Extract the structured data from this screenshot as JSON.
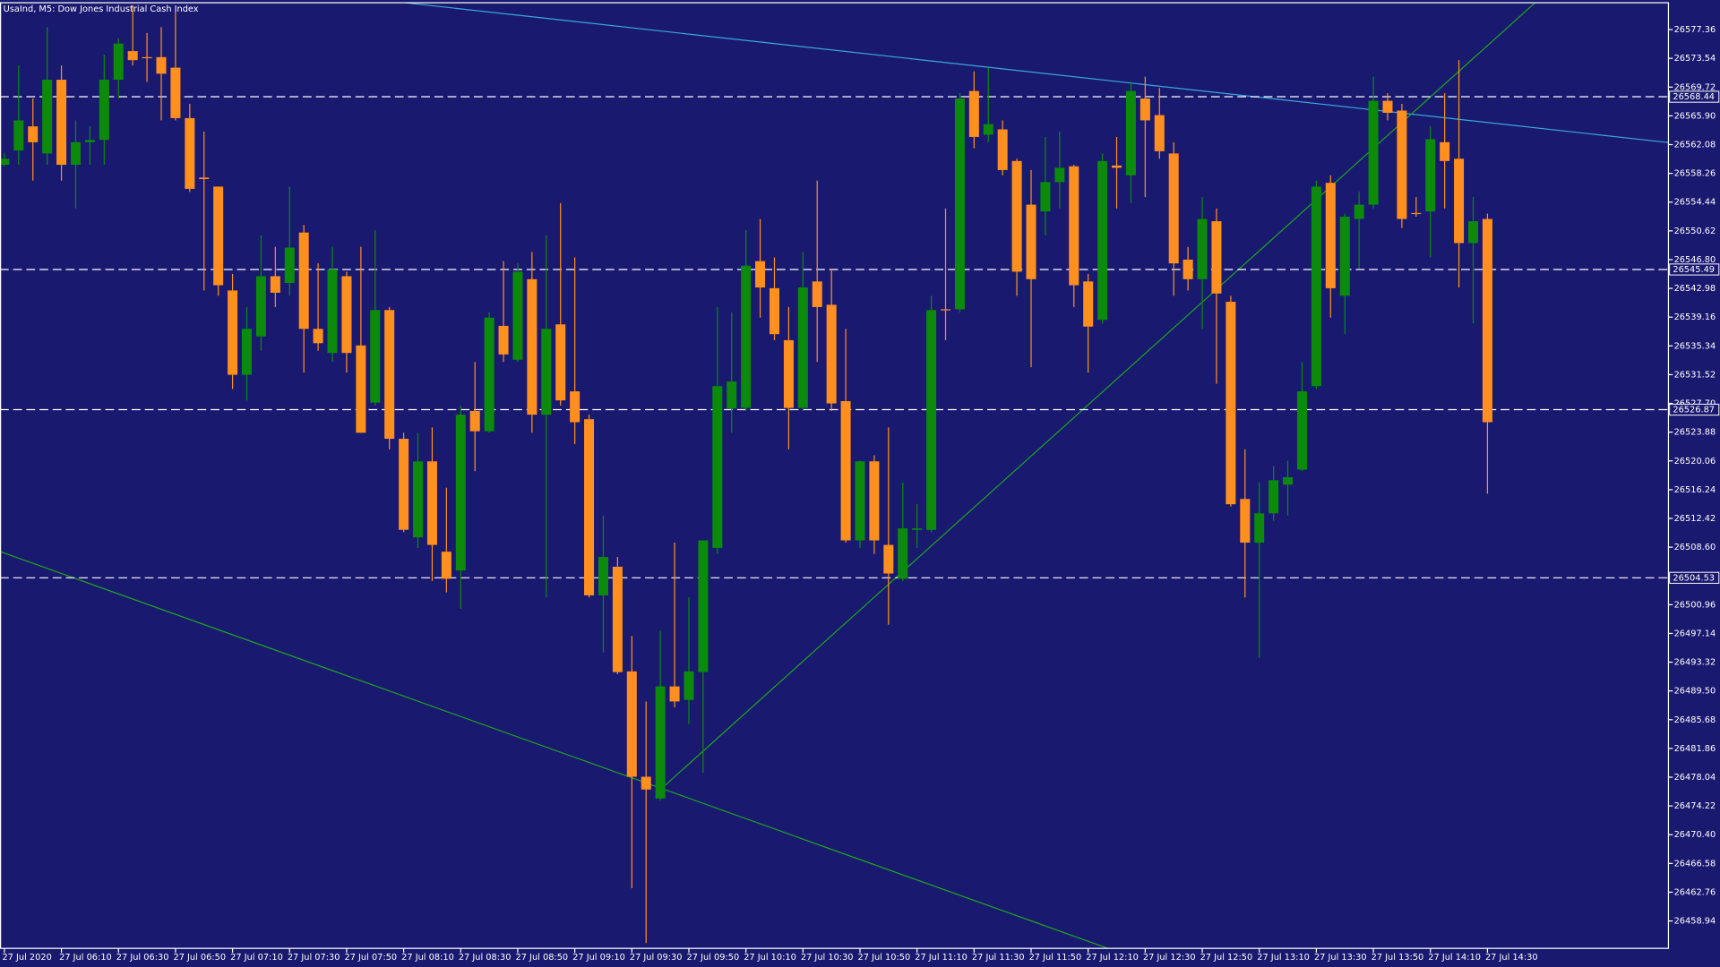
{
  "chart_data": {
    "type": "candlestick",
    "title": "UsaInd, M5:  Dow Jones Industrial Cash Index",
    "background": "#191970",
    "up_color": "#0b8a0b",
    "down_color": "#ff8f1f",
    "grid": false,
    "ylim": [
      26455.3,
      26581.0
    ],
    "yticks": [
      26577.36,
      26573.54,
      26569.72,
      {
        "value": 26565.9,
        "label": "26565.90"
      },
      26562.08,
      26558.26,
      26554.44,
      26550.62,
      {
        "value": 26546.8,
        "label": "26546.80"
      },
      26542.98,
      26539.16,
      26535.34,
      26531.52,
      {
        "value": 26527.7,
        "label": "26527.70"
      },
      26523.88,
      26520.06,
      26516.24,
      26512.42,
      {
        "value": 26508.6,
        "label": "26508.60"
      },
      26504.78,
      26500.96,
      26497.14,
      26493.32,
      {
        "value": 26489.5,
        "label": "26489.50"
      },
      26485.68,
      26481.86,
      26478.04,
      26474.22,
      {
        "value": 26470.4,
        "label": "26470.40"
      },
      26466.58,
      26462.76,
      26458.94
    ],
    "levels": [
      26568.44,
      26545.49,
      26526.87,
      26504.53
    ],
    "categories": [
      "27 Jul 2020",
      null,
      null,
      null,
      "27 Jul 06:10",
      null,
      null,
      null,
      "27 Jul 06:30",
      null,
      null,
      null,
      "27 Jul 06:50",
      null,
      null,
      null,
      "27 Jul 07:10",
      null,
      null,
      null,
      "27 Jul 07:30",
      null,
      null,
      null,
      "27 Jul 07:50",
      null,
      null,
      null,
      "27 Jul 08:10",
      null,
      null,
      null,
      "27 Jul 08:30",
      null,
      null,
      null,
      "27 Jul 08:50",
      null,
      null,
      null,
      "27 Jul 09:10",
      null,
      null,
      null,
      "27 Jul 09:30",
      null,
      null,
      null,
      "27 Jul 09:50",
      null,
      null,
      null,
      "27 Jul 10:10",
      null,
      null,
      null,
      "27 Jul 10:30",
      null,
      null,
      null,
      "27 Jul 10:50",
      null,
      null,
      null,
      "27 Jul 11:10",
      null,
      null,
      null,
      "27 Jul 11:30",
      null,
      null,
      null,
      "27 Jul 11:50",
      null,
      null,
      null,
      "27 Jul 12:10",
      null,
      null,
      null,
      "27 Jul 12:30",
      null,
      null,
      null,
      "27 Jul 12:50",
      null,
      null,
      null,
      "27 Jul 13:10",
      null,
      null,
      null,
      "27 Jul 13:30",
      null,
      null,
      null,
      "27 Jul 13:50",
      null,
      null,
      null,
      "27 Jul 14:10",
      null,
      null,
      null,
      "27 Jul 14:30"
    ],
    "open": [
      26559.4,
      26561.3,
      26564.5,
      26560.9,
      26570.7,
      26559.4,
      26562.4,
      26562.7,
      26570.7,
      26574.5,
      26573.7,
      26573.7,
      26572.3,
      26565.6,
      26557.7,
      26556.5,
      26542.7,
      26531.5,
      26536.6,
      26544.6,
      26543.7,
      26550.4,
      26537.6,
      26534.4,
      26544.6,
      26535.4,
      26527.8,
      26540.1,
      26523.0,
      26509.9,
      26520.0,
      26508.0,
      26505.5,
      26526.7,
      26524.0,
      26538.0,
      26533.5,
      26544.2,
      26526.2,
      26538.2,
      26529.3,
      26525.6,
      26502.2,
      26506.0,
      26492.1,
      26478.1,
      26475.2,
      26490.1,
      26488.3,
      26492.0,
      26508.5,
      26527.0,
      26527.1,
      26546.6,
      26543.0,
      26536.1,
      26527.1,
      26543.9,
      26540.8,
      26528.0,
      26509.5,
      26520.0,
      26508.9,
      26504.4,
      26510.9,
      26510.9,
      26540.2,
      26540.2,
      26569.2,
      26563.4,
      26564.1,
      26559.9,
      26554.1,
      26553.2,
      26557.1,
      26559.2,
      26543.9,
      26538.8,
      26559.3,
      26558.0,
      26568.2,
      26566.0,
      26560.9,
      26546.8,
      26544.2,
      26551.9,
      26541.2,
      26515.0,
      26509.2,
      26513.1,
      26516.9,
      26518.9,
      26530.0,
      26557.0,
      26542.0,
      26552.2,
      26554.1,
      26567.9,
      26566.6,
      26553.0,
      26553.2,
      26562.4,
      26560.2,
      26549.0,
      26552.2
    ],
    "high": [
      26560.9,
      26572.6,
      26568.2,
      26577.7,
      26572.6,
      26565.3,
      26564.5,
      26574.0,
      26576.2,
      26580.6,
      26576.9,
      26577.7,
      26579.8,
      26567.5,
      26563.8,
      26556.5,
      26544.9,
      26540.5,
      26550.0,
      26548.5,
      26556.5,
      26551.4,
      26546.3,
      26548.5,
      26545.2,
      26548.5,
      26550.7,
      26540.5,
      26523.8,
      26523.8,
      26524.5,
      26516.5,
      26527.4,
      26533.2,
      26539.8,
      26546.6,
      26546.3,
      26547.8,
      26550.0,
      26554.3,
      26547.1,
      26526.2,
      26512.8,
      26507.3,
      26496.8,
      26488.1,
      26497.5,
      26509.2,
      26501.9,
      26509.5,
      26540.5,
      26539.8,
      26550.7,
      26552.2,
      26547.1,
      26540.5,
      26547.8,
      26557.3,
      26545.6,
      26537.6,
      26520.1,
      26520.8,
      26524.5,
      26517.2,
      26514.3,
      26542.0,
      26553.6,
      26568.9,
      26571.8,
      26572.3,
      26565.3,
      26560.2,
      26558.7,
      26563.1,
      26563.8,
      26559.4,
      26544.9,
      26560.9,
      26563.1,
      26570.4,
      26571.1,
      26569.6,
      26562.4,
      26548.5,
      26555.1,
      26553.6,
      26542.0,
      26521.6,
      26517.2,
      26519.4,
      26520.1,
      26533.2,
      26557.3,
      26558.0,
      26552.9,
      26555.8,
      26571.1,
      26568.9,
      26567.5,
      26555.1,
      26564.5,
      26568.9,
      26573.3,
      26555.1,
      26552.9
    ],
    "low": [
      26559.2,
      26559.4,
      26557.3,
      26559.4,
      26557.3,
      26553.6,
      26559.4,
      26559.4,
      26568.2,
      26572.6,
      26570.4,
      26565.3,
      26565.3,
      26555.8,
      26542.7,
      26542.0,
      26529.6,
      26528.1,
      26534.7,
      26540.5,
      26542.0,
      26531.8,
      26534.7,
      26533.2,
      26531.8,
      26523.8,
      26527.4,
      26521.6,
      26510.6,
      26508.5,
      26504.1,
      26502.6,
      26500.4,
      26518.7,
      26523.8,
      26533.2,
      26533.2,
      26523.8,
      26501.9,
      26527.4,
      26522.3,
      26501.9,
      26494.6,
      26491.7,
      26463.3,
      26456.0,
      26474.9,
      26487.3,
      26485.1,
      26478.6,
      26507.7,
      26523.8,
      26526.7,
      26539.1,
      26536.1,
      26521.6,
      26526.7,
      26533.2,
      26526.7,
      26509.2,
      26508.5,
      26507.7,
      26498.3,
      26504.1,
      26508.5,
      26510.6,
      26536.1,
      26539.8,
      26561.6,
      26562.4,
      26558.0,
      26542.0,
      26532.5,
      26550.0,
      26553.6,
      26540.5,
      26531.8,
      26538.3,
      26553.6,
      26554.3,
      26555.1,
      26560.2,
      26542.0,
      26542.7,
      26537.6,
      26530.3,
      26514.0,
      26501.9,
      26493.9,
      26512.1,
      26512.8,
      26518.7,
      26529.6,
      26539.1,
      26536.9,
      26545.6,
      26553.6,
      26565.3,
      26551.0,
      26552.5,
      26547.1,
      26553.6,
      26543.1,
      26538.3,
      26515.7
    ],
    "close": [
      26560.2,
      26565.3,
      26562.4,
      26570.7,
      26559.4,
      26562.4,
      26562.7,
      26570.7,
      26575.5,
      26573.3,
      26573.6,
      26571.5,
      26565.6,
      26556.2,
      26557.5,
      26543.4,
      26531.5,
      26537.6,
      26544.6,
      26542.4,
      26548.4,
      26537.6,
      26535.7,
      26545.5,
      26534.4,
      26523.8,
      26540.1,
      26523.0,
      26510.9,
      26520.0,
      26508.9,
      26504.4,
      26526.2,
      26524.0,
      26539.1,
      26534.2,
      26545.2,
      26526.2,
      26537.6,
      26528.1,
      26525.2,
      26502.2,
      26507.3,
      26492.0,
      26478.1,
      26476.4,
      26490.1,
      26488.1,
      26492.1,
      26509.5,
      26530.0,
      26530.6,
      26546.0,
      26543.1,
      26536.9,
      26527.1,
      26543.1,
      26540.5,
      26527.7,
      26509.5,
      26520.0,
      26509.5,
      26505.1,
      26511.1,
      26511.1,
      26540.1,
      26540.1,
      26568.2,
      26563.1,
      26564.8,
      26558.7,
      26545.2,
      26544.2,
      26557.1,
      26559.0,
      26543.4,
      26537.9,
      26559.9,
      26559.0,
      26569.2,
      26565.3,
      26561.2,
      26546.3,
      26544.2,
      26552.2,
      26542.3,
      26514.3,
      26509.2,
      26513.1,
      26517.5,
      26517.9,
      26529.3,
      26556.5,
      26543.0,
      26552.5,
      26554.1,
      26567.9,
      26566.3,
      26552.2,
      26552.9,
      26562.8,
      26559.9,
      26549.0,
      26551.9,
      26525.2
    ]
  }
}
